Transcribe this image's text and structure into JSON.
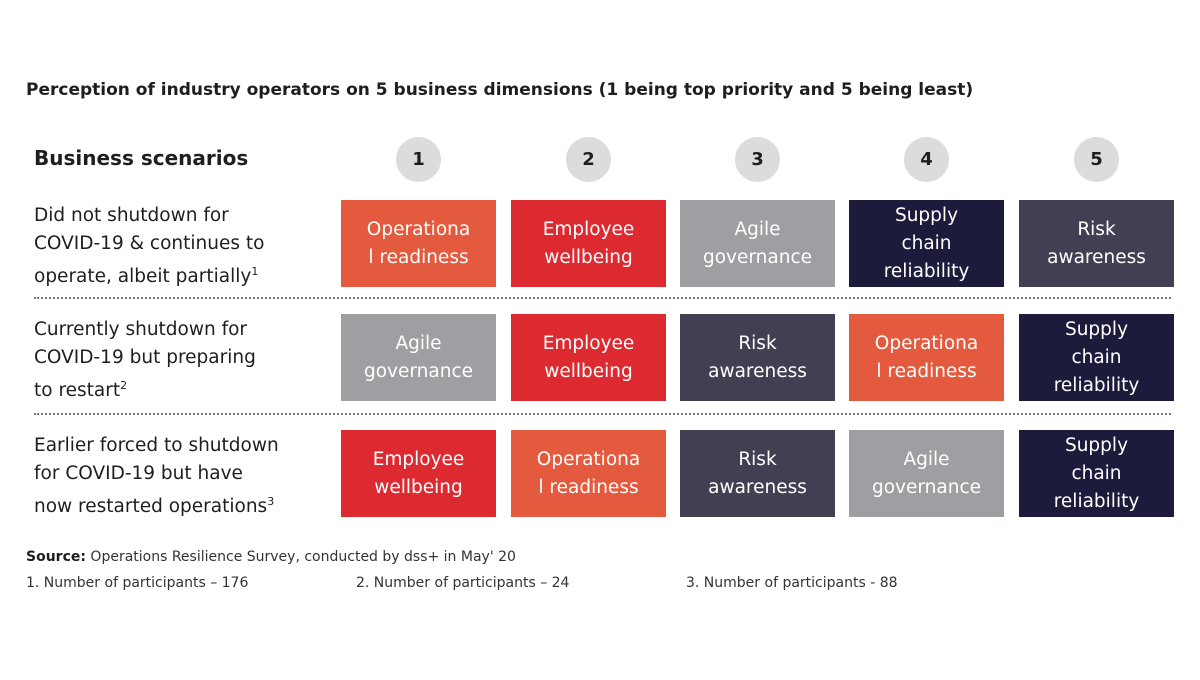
{
  "title": "Perception of industry operators on 5 business dimensions (1 being top priority and 5 being least)",
  "colors": {
    "Operational readiness": "#e35a3f",
    "Employee wellbeing": "#dd2a30",
    "Agile governance": "#9e9fa2",
    "Risk awareness": "#433f53",
    "Supply chain reliability": "#1c1b3c"
  },
  "chart_data": {
    "type": "table",
    "row_header": "Business scenarios",
    "columns": [
      "1",
      "2",
      "3",
      "4",
      "5"
    ],
    "rows": [
      {
        "scenario": "Did not shutdown for COVID-19 & continues to operate, albeit partially",
        "lines": [
          "Did not shutdown for",
          "COVID-19 & continues to",
          "operate, albeit partially"
        ],
        "footnote_ref": "1",
        "cells": [
          {
            "label": "Operationa\nl readiness",
            "dimension": "Operational readiness"
          },
          {
            "label": "Employee\nwellbeing",
            "dimension": "Employee wellbeing"
          },
          {
            "label": "Agile\ngovernance",
            "dimension": "Agile governance"
          },
          {
            "label": "Supply\nchain\nreliability",
            "dimension": "Supply chain reliability"
          },
          {
            "label": "Risk\nawareness",
            "dimension": "Risk awareness"
          }
        ]
      },
      {
        "scenario": "Currently shutdown for COVID-19 but preparing to restart",
        "lines": [
          "Currently shutdown for",
          "COVID-19 but preparing",
          "to restart"
        ],
        "footnote_ref": "2",
        "cells": [
          {
            "label": "Agile\ngovernance",
            "dimension": "Agile governance"
          },
          {
            "label": "Employee\nwellbeing",
            "dimension": "Employee wellbeing"
          },
          {
            "label": "Risk\nawareness",
            "dimension": "Risk awareness"
          },
          {
            "label": "Operationa\nl readiness",
            "dimension": "Operational readiness"
          },
          {
            "label": "Supply\nchain\nreliability",
            "dimension": "Supply chain reliability"
          }
        ]
      },
      {
        "scenario": "Earlier forced to shutdown for COVID-19 but have now restarted operations",
        "lines": [
          "Earlier forced to shutdown",
          "for COVID-19 but have",
          "now restarted operations"
        ],
        "footnote_ref": "3",
        "cells": [
          {
            "label": "Employee\nwellbeing",
            "dimension": "Employee wellbeing"
          },
          {
            "label": "Operationa\nl readiness",
            "dimension": "Operational readiness"
          },
          {
            "label": "Risk\nawareness",
            "dimension": "Risk awareness"
          },
          {
            "label": "Agile\ngovernance",
            "dimension": "Agile governance"
          },
          {
            "label": "Supply\nchain\nreliability",
            "dimension": "Supply chain reliability"
          }
        ]
      }
    ]
  },
  "source": {
    "label": "Source:",
    "text": " Operations Resilience Survey, conducted by dss+ in May' 20"
  },
  "notes": [
    "1. Number of participants – 176",
    "2. Number of participants – 24",
    "3. Number of participants - 88"
  ]
}
